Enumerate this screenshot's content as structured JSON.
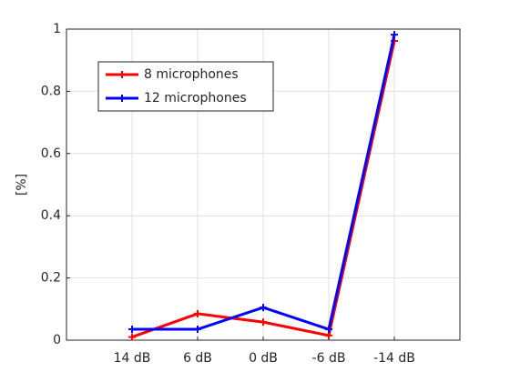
{
  "chart_data": {
    "type": "line",
    "x": [
      1,
      2,
      3,
      4,
      5
    ],
    "xlim": [
      0,
      6
    ],
    "xticks": [
      {
        "value": 1,
        "label": "14 dB"
      },
      {
        "value": 2,
        "label": "6 dB"
      },
      {
        "value": 3,
        "label": "0 dB"
      },
      {
        "value": 4,
        "label": "-6 dB"
      },
      {
        "value": 5,
        "label": "-14 dB"
      }
    ],
    "ylabel": "[%]",
    "ylim": [
      0,
      1
    ],
    "yticks": [
      0,
      0.2,
      0.4,
      0.6,
      0.8,
      1
    ],
    "grid": true,
    "legend": "upper left",
    "series": [
      {
        "name": "8 microphones",
        "color": "#ff0000",
        "values": [
          0.01,
          0.085,
          0.058,
          0.015,
          0.962
        ]
      },
      {
        "name": "12 microphones",
        "color": "#0000ff",
        "values": [
          0.035,
          0.035,
          0.105,
          0.035,
          0.982
        ]
      }
    ]
  }
}
